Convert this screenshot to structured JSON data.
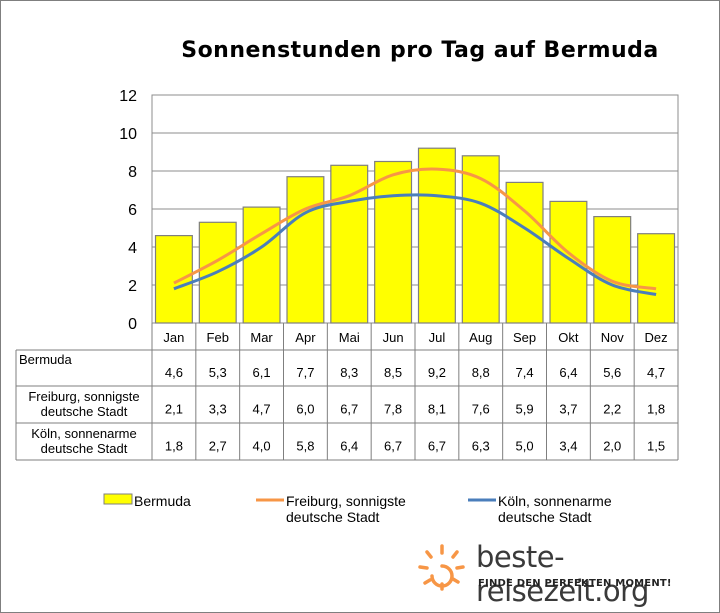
{
  "chart_data": {
    "type": "bar",
    "title": "Sonnenstunden pro Tag auf Bermuda",
    "ylim": [
      0,
      12
    ],
    "yticks": [
      "0",
      "2",
      "4",
      "6",
      "8",
      "10",
      "12"
    ],
    "categories": [
      "Jan",
      "Feb",
      "Mar",
      "Apr",
      "Mai",
      "Jun",
      "Jul",
      "Aug",
      "Sep",
      "Okt",
      "Nov",
      "Dez"
    ],
    "series": [
      {
        "name": "Bermuda",
        "name_lines": [
          "Bermuda"
        ],
        "kind": "bar",
        "color": "#ffff00",
        "values": [
          4.6,
          5.3,
          6.1,
          7.7,
          8.3,
          8.5,
          9.2,
          8.8,
          7.4,
          6.4,
          5.6,
          4.7
        ],
        "labels": [
          "4,6",
          "5,3",
          "6,1",
          "7,7",
          "8,3",
          "8,5",
          "9,2",
          "8,8",
          "7,4",
          "6,4",
          "5,6",
          "4,7"
        ]
      },
      {
        "name": "Freiburg, sonnigste deutsche Stadt",
        "name_lines": [
          "Freiburg, sonnigste",
          "deutsche Stadt"
        ],
        "kind": "line",
        "color": "#f79646",
        "values": [
          2.1,
          3.3,
          4.7,
          6.0,
          6.7,
          7.8,
          8.1,
          7.6,
          5.9,
          3.7,
          2.2,
          1.8
        ],
        "labels": [
          "2,1",
          "3,3",
          "4,7",
          "6,0",
          "6,7",
          "7,8",
          "8,1",
          "7,6",
          "5,9",
          "3,7",
          "2,2",
          "1,8"
        ]
      },
      {
        "name": "Köln, sonnenarme deutsche Stadt",
        "name_lines": [
          "Köln, sonnenarme",
          "deutsche Stadt"
        ],
        "kind": "line",
        "color": "#4a7ebb",
        "values": [
          1.8,
          2.7,
          4.0,
          5.8,
          6.4,
          6.7,
          6.7,
          6.3,
          5.0,
          3.4,
          2.0,
          1.5
        ],
        "labels": [
          "1,8",
          "2,7",
          "4,0",
          "5,8",
          "6,4",
          "6,7",
          "6,7",
          "6,3",
          "5,0",
          "3,4",
          "2,0",
          "1,5"
        ]
      }
    ],
    "legend_position": "bottom",
    "grid": true
  },
  "logo": {
    "name": "beste-reisezeit.org",
    "slogan": "FINDE DEN PERFEKTEN MOMENT!",
    "icon": "sun-icon"
  }
}
